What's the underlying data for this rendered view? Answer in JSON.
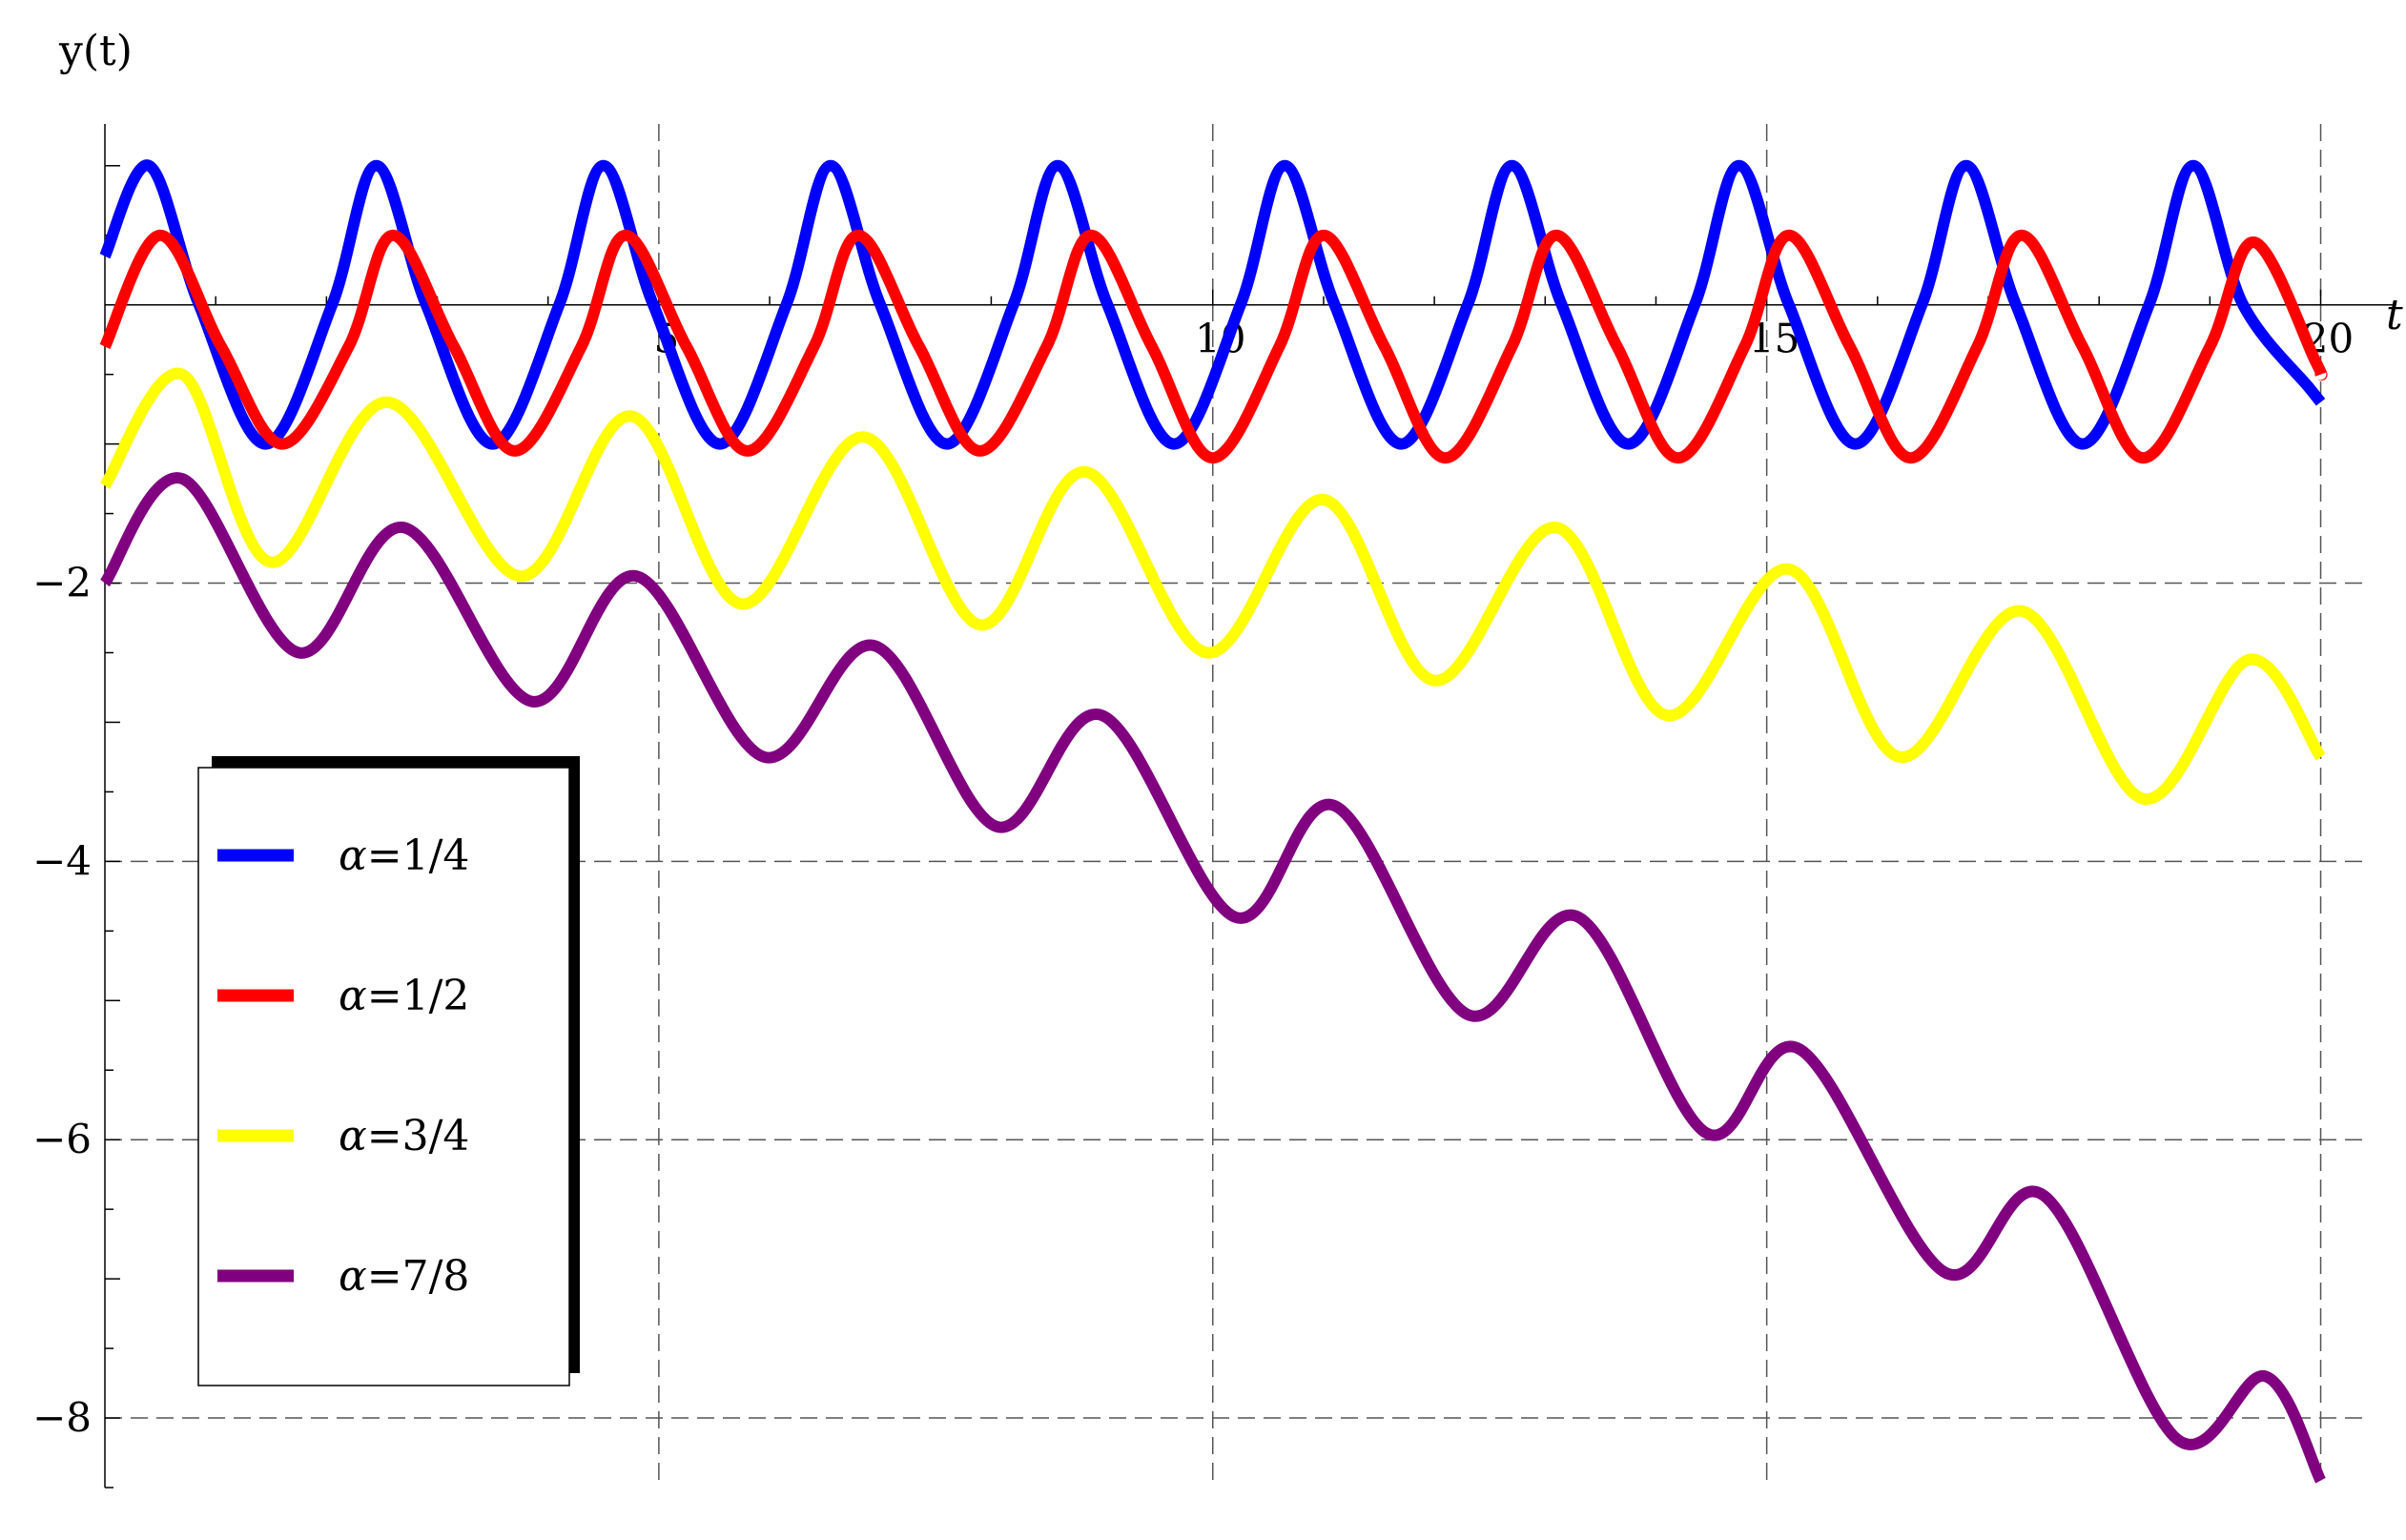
{
  "chart_data": {
    "type": "line",
    "xlabel": "t",
    "ylabel": "y(t)",
    "xlim": [
      0,
      20.4
    ],
    "ylim": [
      -8.5,
      1.3
    ],
    "x_ticks": [
      5,
      10,
      15,
      20
    ],
    "x_tick_labels": [
      "5",
      "10",
      "15",
      "20"
    ],
    "y_ticks": [
      -2,
      -4,
      -6,
      -8
    ],
    "y_tick_labels": [
      "−2",
      "−4",
      "−6",
      "−8"
    ],
    "grid": "dashed at major ticks",
    "legend_position": "left",
    "series": [
      {
        "name": "α=1/4",
        "greek": "α",
        "value_text": "=1/4",
        "color": "#0000ff",
        "x": [
          0,
          0.4,
          0.85,
          1.45,
          2.05,
          2.45,
          2.9,
          3.5,
          4.1,
          4.5,
          4.95,
          5.55,
          6.15,
          6.55,
          7.0,
          7.6,
          8.2,
          8.6,
          9.05,
          9.65,
          10.25,
          10.65,
          11.1,
          11.7,
          12.3,
          12.7,
          13.15,
          13.75,
          14.35,
          14.75,
          15.2,
          15.8,
          16.4,
          16.8,
          17.25,
          17.85,
          18.45,
          18.85,
          19.3,
          19.9,
          20.0
        ],
        "y": [
          0.35,
          1.0,
          0.0,
          -1.0,
          0.0,
          1.0,
          0.0,
          -1.0,
          0.0,
          1.0,
          0.0,
          -1.0,
          0.0,
          1.0,
          0.0,
          -1.0,
          0.0,
          1.0,
          0.0,
          -1.0,
          0.0,
          1.0,
          0.0,
          -1.0,
          0.0,
          1.0,
          0.0,
          -1.0,
          0.0,
          1.0,
          0.0,
          -1.0,
          0.0,
          1.0,
          0.0,
          -1.0,
          0.0,
          1.0,
          0.0,
          -0.6,
          -0.7
        ]
      },
      {
        "name": "α=1/2",
        "greek": "α",
        "value_text": "=1/2",
        "color": "#ff0000",
        "x": [
          0,
          0.5,
          1.05,
          1.6,
          2.2,
          2.6,
          3.15,
          3.7,
          4.3,
          4.7,
          5.25,
          5.8,
          6.4,
          6.8,
          7.35,
          7.9,
          8.5,
          8.9,
          9.45,
          10.0,
          10.6,
          11.0,
          11.55,
          12.1,
          12.7,
          13.1,
          13.65,
          14.2,
          14.8,
          15.2,
          15.75,
          16.3,
          16.9,
          17.3,
          17.85,
          18.4,
          19.0,
          19.4,
          19.95,
          20.0
        ],
        "y": [
          -0.3,
          0.5,
          -0.3,
          -1.0,
          -0.3,
          0.5,
          -0.3,
          -1.05,
          -0.3,
          0.5,
          -0.3,
          -1.05,
          -0.3,
          0.5,
          -0.3,
          -1.05,
          -0.3,
          0.5,
          -0.3,
          -1.1,
          -0.3,
          0.5,
          -0.3,
          -1.1,
          -0.3,
          0.5,
          -0.3,
          -1.1,
          -0.3,
          0.5,
          -0.3,
          -1.1,
          -0.3,
          0.5,
          -0.3,
          -1.1,
          -0.3,
          0.45,
          -0.4,
          -0.5
        ]
      },
      {
        "name": "α=3/4",
        "greek": "α",
        "value_text": "=3/4",
        "color": "#ffff00",
        "x": [
          0,
          0.7,
          1.5,
          2.55,
          3.75,
          4.75,
          5.75,
          6.85,
          7.9,
          8.85,
          9.95,
          11.0,
          12.0,
          13.1,
          14.1,
          15.2,
          16.2,
          17.3,
          18.4,
          19.35,
          20.0
        ],
        "y": [
          -1.3,
          -0.5,
          -1.85,
          -0.7,
          -1.95,
          -0.8,
          -2.15,
          -0.95,
          -2.3,
          -1.2,
          -2.5,
          -1.4,
          -2.7,
          -1.6,
          -2.95,
          -1.9,
          -3.25,
          -2.2,
          -3.55,
          -2.55,
          -3.25
        ]
      },
      {
        "name": "α=7/8",
        "greek": "α",
        "value_text": "=7/8",
        "color": "#800080",
        "x": [
          0,
          0.7,
          1.75,
          2.7,
          3.85,
          4.8,
          5.95,
          6.95,
          8.05,
          9.0,
          10.2,
          11.1,
          12.3,
          13.3,
          14.45,
          15.3,
          16.6,
          17.5,
          18.7,
          19.5,
          20.0
        ],
        "y": [
          -2.0,
          -1.25,
          -2.5,
          -1.6,
          -2.85,
          -1.95,
          -3.25,
          -2.45,
          -3.75,
          -2.95,
          -4.4,
          -3.6,
          -5.1,
          -4.4,
          -5.95,
          -5.35,
          -6.95,
          -6.4,
          -8.15,
          -7.7,
          -8.45
        ]
      }
    ]
  }
}
